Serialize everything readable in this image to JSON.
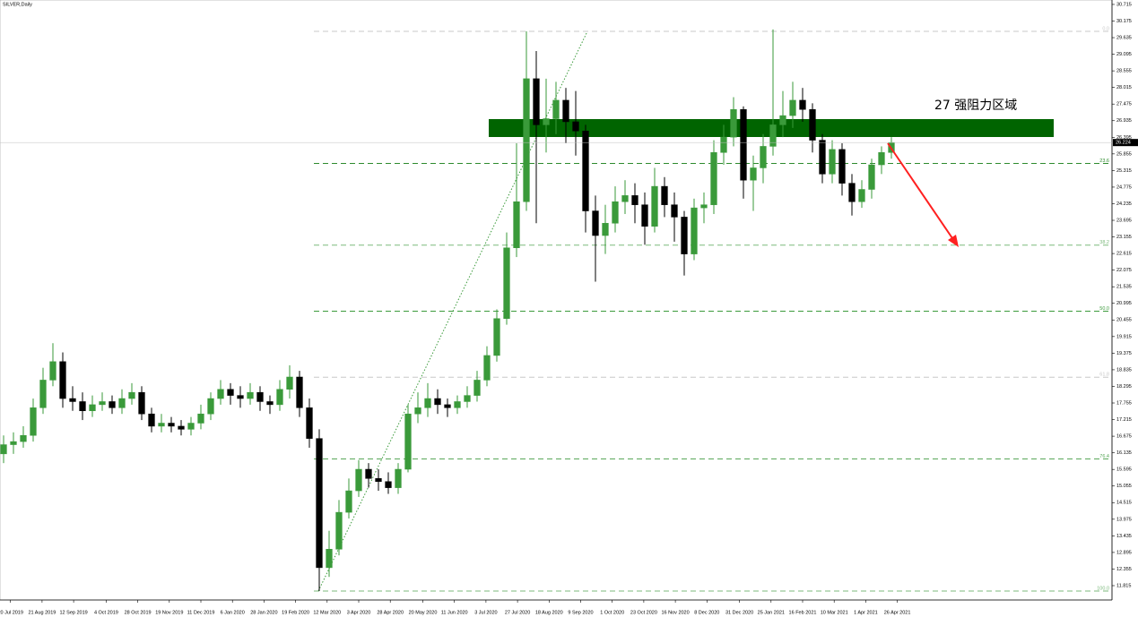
{
  "chart_data": {
    "type": "candlestick",
    "title": "SILVER,Daily",
    "annotation": "27  强阻力区域",
    "up_color": "#3a9a3a",
    "down_color": "#000000",
    "open": [
      16.1,
      16.4,
      16.5,
      16.7,
      17.6,
      18.5,
      19.1,
      17.9,
      17.8,
      17.5,
      17.7,
      17.8,
      17.6,
      17.9,
      18.1,
      17.4,
      17.0,
      17.1,
      17.0,
      16.9,
      17.1,
      17.4,
      17.9,
      18.2,
      18.0,
      17.9,
      18.1,
      17.8,
      17.7,
      18.2,
      18.6,
      17.6,
      16.6,
      12.4,
      13.0,
      14.2,
      14.9,
      15.6,
      15.3,
      15.2,
      15.0,
      15.6,
      17.4,
      17.6,
      17.9,
      17.7,
      17.6,
      17.8,
      18.0,
      18.5,
      19.3,
      20.5,
      22.8,
      24.3,
      28.3,
      26.8,
      27.0,
      27.6,
      26.9,
      26.6,
      24.0,
      23.2,
      23.6,
      24.3,
      24.5,
      24.2,
      23.5,
      24.8,
      24.2,
      23.8,
      22.6,
      24.1,
      24.2,
      25.9,
      26.4,
      27.3,
      25.0,
      25.4,
      26.1,
      26.8,
      27.1,
      27.6,
      27.3,
      26.3,
      25.2,
      26.0,
      24.9,
      24.3,
      24.7,
      25.5,
      25.9
    ],
    "high": [
      16.7,
      16.8,
      17.0,
      17.9,
      18.9,
      19.7,
      19.4,
      18.3,
      18.1,
      18.0,
      18.1,
      18.0,
      18.2,
      18.4,
      18.3,
      17.6,
      17.4,
      17.3,
      17.2,
      17.3,
      17.7,
      18.1,
      18.5,
      18.4,
      18.3,
      18.4,
      18.3,
      18.0,
      18.5,
      18.98,
      18.8,
      17.9,
      16.9,
      13.6,
      14.6,
      15.3,
      15.9,
      15.8,
      15.6,
      15.5,
      15.8,
      17.7,
      18.1,
      18.4,
      18.2,
      17.9,
      18.0,
      18.3,
      18.8,
      19.6,
      20.8,
      23.3,
      26.2,
      29.84,
      29.2,
      28.3,
      28.2,
      28.0,
      27.9,
      26.8,
      24.5,
      24.2,
      24.8,
      25.0,
      24.9,
      24.6,
      25.4,
      25.1,
      24.6,
      24.0,
      24.4,
      24.6,
      26.3,
      26.8,
      27.7,
      27.4,
      25.8,
      26.5,
      29.9,
      27.9,
      28.2,
      28.0,
      27.5,
      26.5,
      26.3,
      26.2,
      25.2,
      25.0,
      25.7,
      26.1,
      26.4
    ],
    "low": [
      15.8,
      16.1,
      16.3,
      16.5,
      17.4,
      18.3,
      17.6,
      17.5,
      17.2,
      17.3,
      17.5,
      17.4,
      17.4,
      17.7,
      17.2,
      16.8,
      16.8,
      16.8,
      16.7,
      16.7,
      16.9,
      17.2,
      17.7,
      17.7,
      17.6,
      17.7,
      17.5,
      17.4,
      17.5,
      17.9,
      17.3,
      16.3,
      11.64,
      12.1,
      12.8,
      14.0,
      14.7,
      15.0,
      14.9,
      14.8,
      14.8,
      15.5,
      17.1,
      17.3,
      17.4,
      17.3,
      17.4,
      17.6,
      17.8,
      18.3,
      19.1,
      20.3,
      22.5,
      24.0,
      23.6,
      25.9,
      26.5,
      26.2,
      25.8,
      23.3,
      21.7,
      22.6,
      23.3,
      23.9,
      23.6,
      22.9,
      23.3,
      23.8,
      23.0,
      21.9,
      22.4,
      23.6,
      23.9,
      25.5,
      26.1,
      24.4,
      24.0,
      24.9,
      25.8,
      26.4,
      26.7,
      26.9,
      25.9,
      24.9,
      24.9,
      24.5,
      23.85,
      24.1,
      24.4,
      25.2,
      25.7
    ],
    "close": [
      16.4,
      16.5,
      16.7,
      17.6,
      18.5,
      19.1,
      17.9,
      17.8,
      17.5,
      17.7,
      17.8,
      17.6,
      17.9,
      18.1,
      17.4,
      17.0,
      17.1,
      17.0,
      16.9,
      17.1,
      17.4,
      17.9,
      18.2,
      18.0,
      17.9,
      18.1,
      17.8,
      17.7,
      18.2,
      18.6,
      17.6,
      16.6,
      12.4,
      13.0,
      14.2,
      14.9,
      15.6,
      15.3,
      15.2,
      15.0,
      15.6,
      17.4,
      17.6,
      17.9,
      17.7,
      17.6,
      17.8,
      18.0,
      18.5,
      19.3,
      20.5,
      22.8,
      24.3,
      28.3,
      26.8,
      27.0,
      27.6,
      26.9,
      26.6,
      24.0,
      23.2,
      23.6,
      24.3,
      24.5,
      24.2,
      23.5,
      24.8,
      24.2,
      23.8,
      22.6,
      24.1,
      24.2,
      25.9,
      26.4,
      27.3,
      25.0,
      25.4,
      26.1,
      26.8,
      27.1,
      27.6,
      27.3,
      26.3,
      25.2,
      26.0,
      24.9,
      24.3,
      24.7,
      25.5,
      25.9,
      26.224
    ],
    "current_price": 26.224,
    "ylim": [
      11.349,
      30.859
    ],
    "yticks": [
      30.715,
      30.175,
      29.635,
      29.095,
      28.555,
      28.015,
      27.475,
      26.935,
      26.395,
      25.855,
      25.315,
      24.775,
      24.235,
      23.695,
      23.155,
      22.615,
      22.075,
      21.535,
      20.995,
      20.455,
      19.915,
      19.375,
      18.835,
      18.295,
      17.755,
      17.215,
      16.675,
      16.135,
      15.595,
      15.055,
      14.515,
      13.975,
      13.435,
      12.895,
      12.355,
      11.815
    ],
    "xlim": [
      -0.364,
      112.364
    ],
    "xticks": [
      {
        "value": 0.7,
        "label": "20 Jul 2019"
      },
      {
        "value": 3.9,
        "label": "21 Aug 2019"
      },
      {
        "value": 7.1,
        "label": "12 Sep 2019"
      },
      {
        "value": 10.4,
        "label": "4 Oct 2019"
      },
      {
        "value": 13.6,
        "label": "28 Oct 2019"
      },
      {
        "value": 16.8,
        "label": "19 Nov 2019"
      },
      {
        "value": 20,
        "label": "11 Dec 2019"
      },
      {
        "value": 23.2,
        "label": "6 Jan 2020"
      },
      {
        "value": 26.4,
        "label": "28 Jan 2020"
      },
      {
        "value": 29.6,
        "label": "19 Feb 2020"
      },
      {
        "value": 32.8,
        "label": "12 Mar 2020"
      },
      {
        "value": 36,
        "label": "3 Apr 2020"
      },
      {
        "value": 39.2,
        "label": "28 Apr 2020"
      },
      {
        "value": 42.5,
        "label": "20 May 2020"
      },
      {
        "value": 45.7,
        "label": "11 Jun 2020"
      },
      {
        "value": 48.9,
        "label": "3 Jul 2020"
      },
      {
        "value": 52.1,
        "label": "27 Jul 2020"
      },
      {
        "value": 55.3,
        "label": "18 Aug 2020"
      },
      {
        "value": 58.5,
        "label": "9 Sep 2020"
      },
      {
        "value": 61.7,
        "label": "1 Oct 2020"
      },
      {
        "value": 64.9,
        "label": "23 Oct 2020"
      },
      {
        "value": 68.1,
        "label": "16 Nov 2020"
      },
      {
        "value": 71.3,
        "label": "8 Dec 2020"
      },
      {
        "value": 74.6,
        "label": "31 Dec 2020"
      },
      {
        "value": 77.8,
        "label": "25 Jan 2021"
      },
      {
        "value": 81,
        "label": "16 Feb 2021"
      },
      {
        "value": 84.2,
        "label": "10 Mar 2021"
      },
      {
        "value": 87.4,
        "label": "1 Apr 2021"
      },
      {
        "value": 90.6,
        "label": "26 Apr 2021"
      }
    ],
    "fib_levels": [
      {
        "label": "0.0",
        "value": 29.84,
        "color": "#c8c8c8"
      },
      {
        "label": "23.6",
        "value": 25.545,
        "color": "#2e8b2e"
      },
      {
        "label": "38.2",
        "value": 22.888,
        "color": "#7cba7c"
      },
      {
        "label": "50.0",
        "value": 20.74,
        "color": "#3c9a3c"
      },
      {
        "label": "61.8",
        "value": 18.592,
        "color": "#c8c8c8"
      },
      {
        "label": "76.4",
        "value": 15.935,
        "color": "#5aa85a"
      },
      {
        "label": "100.0",
        "value": 11.64,
        "color": "#7cba7c"
      }
    ]
  }
}
